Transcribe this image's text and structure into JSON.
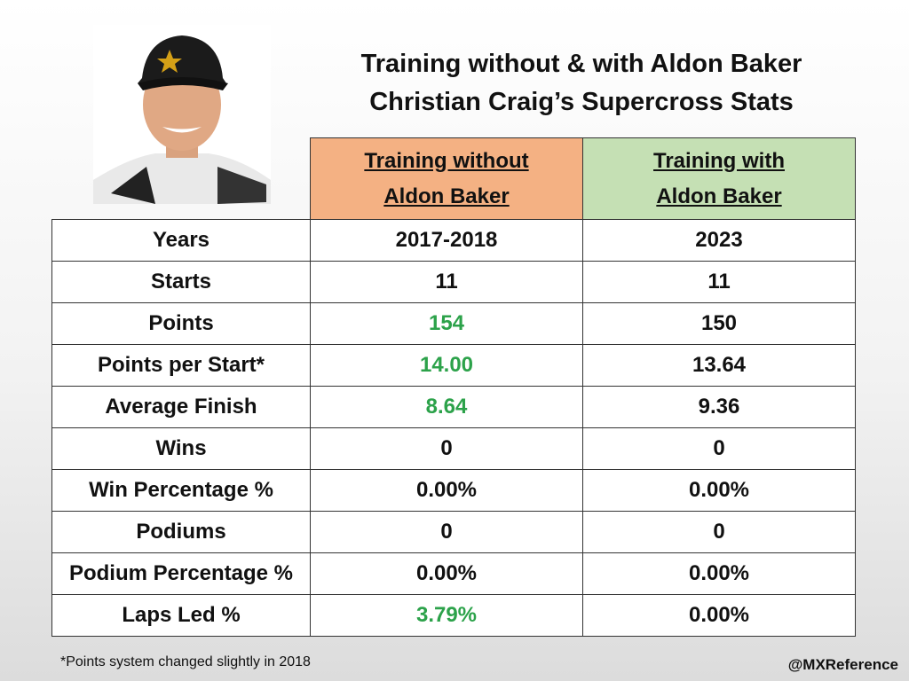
{
  "title": [
    "Training without & with Aldon Baker",
    "Christian Craig’s Supercross Stats"
  ],
  "table": {
    "header": [
      [
        "Training without",
        "Aldon Baker"
      ],
      [
        "Training with",
        "Aldon Baker"
      ]
    ],
    "rows": [
      [
        "Years",
        "2017-2018",
        "2023"
      ],
      [
        "Starts",
        "11",
        "11"
      ],
      [
        "Points",
        "154",
        "150"
      ],
      [
        "Points per Start*",
        "14.00",
        "13.64"
      ],
      [
        "Average Finish",
        "8.64",
        "9.36"
      ],
      [
        "Wins",
        "0",
        "0"
      ],
      [
        "Win Percentage %",
        "0.00%",
        "0.00%"
      ],
      [
        "Podiums",
        "0",
        "0"
      ],
      [
        "Podium Percentage %",
        "0.00%",
        "0.00%"
      ],
      [
        "Laps Led %",
        "3.79%",
        "0.00%"
      ]
    ]
  },
  "footnote": "*Points system changed slightly in 2018",
  "credit": "@MXReference"
}
